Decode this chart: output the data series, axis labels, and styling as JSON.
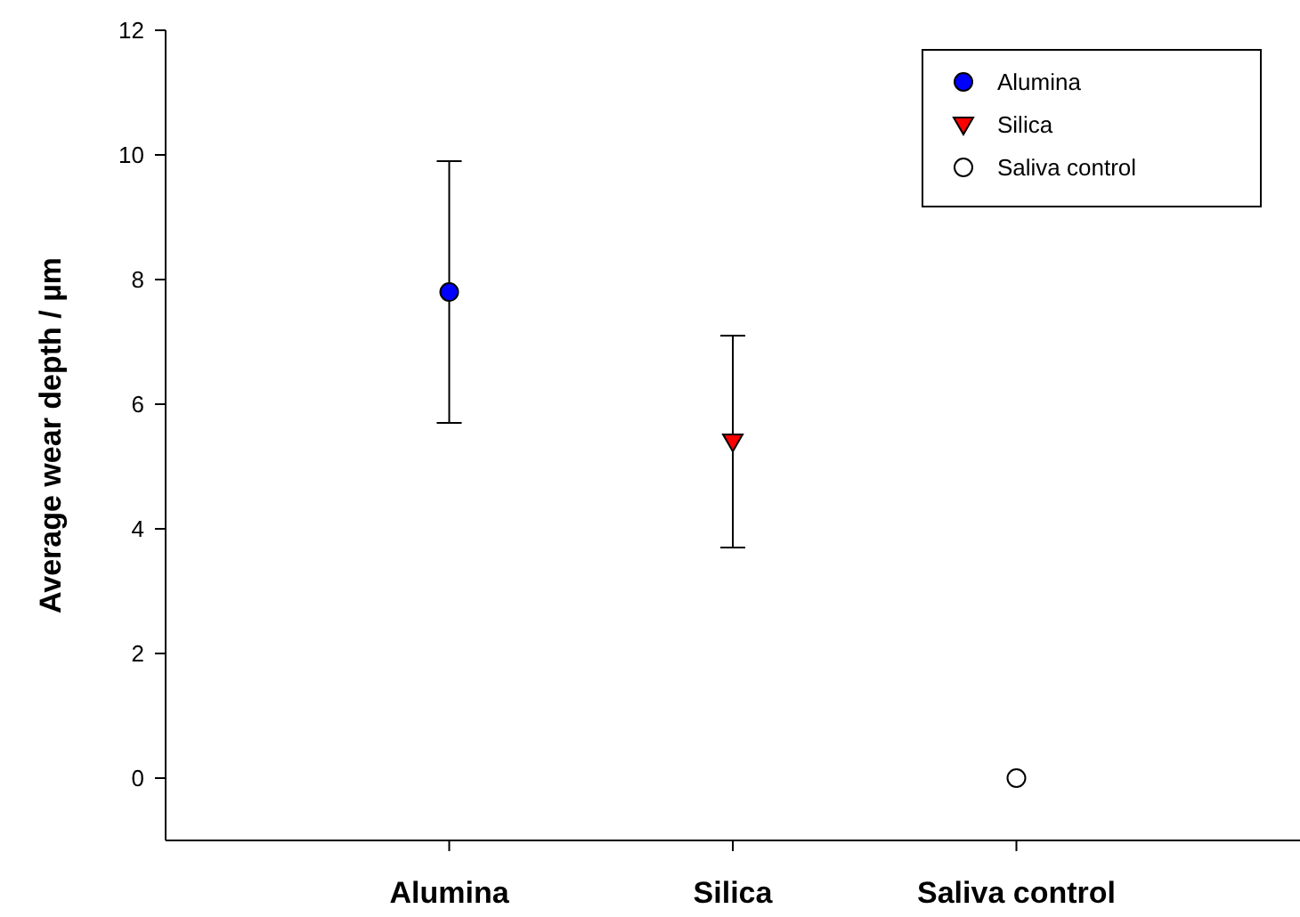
{
  "chart_data": {
    "type": "scatter",
    "ylabel": "Average wear depth / µm",
    "categories": [
      "Alumina",
      "Silica",
      "Saliva control"
    ],
    "ylim": [
      -1,
      12
    ],
    "yticks": [
      0,
      2,
      4,
      6,
      8,
      10,
      12
    ],
    "grid": false,
    "legend": "top right",
    "series": [
      {
        "name": "Alumina",
        "color": "#0000ff",
        "marker": "circle",
        "values": [
          7.8,
          null,
          null
        ],
        "errors": [
          [
            5.7,
            9.9
          ],
          null,
          null
        ]
      },
      {
        "name": "Silica",
        "color": "#ff0000",
        "marker": "triangle",
        "values": [
          null,
          5.4,
          null
        ],
        "errors": [
          null,
          [
            3.7,
            7.1
          ],
          null
        ]
      },
      {
        "name": "Saliva control",
        "color": "#ffffff",
        "marker": "circle",
        "values": [
          null,
          null,
          0
        ],
        "errors": [
          null,
          null,
          null
        ]
      }
    ]
  }
}
